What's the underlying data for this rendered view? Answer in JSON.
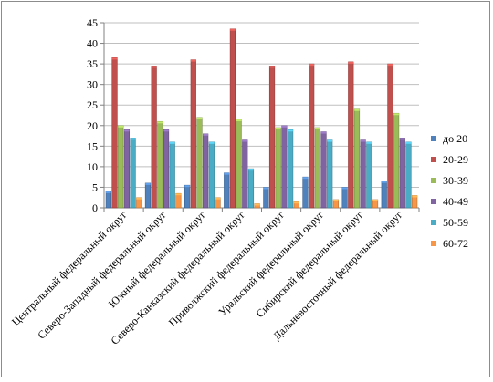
{
  "chart_data": {
    "type": "bar",
    "ylim": [
      0,
      45
    ],
    "yticks": [
      0,
      5,
      10,
      15,
      20,
      25,
      30,
      35,
      40,
      45
    ],
    "grid": true,
    "legend_position": "right",
    "categories": [
      "Центральный федеральный округ",
      "Северо-Западный федеральный округ",
      "Южный федеральный округ",
      "Северо-Кавказский федеральный округ",
      "Приволжский федеральный округ",
      "Уральский федеральный округ",
      "Сибирский федеральный округ",
      "Дальневосточный федеральный округ"
    ],
    "series": [
      {
        "name": "до 20",
        "color": "#4f81bd",
        "values": [
          4.0,
          6.0,
          5.5,
          8.5,
          5.0,
          7.5,
          5.0,
          6.5
        ]
      },
      {
        "name": "20-29",
        "color": "#c0504d",
        "values": [
          36.5,
          34.5,
          36.0,
          43.5,
          34.5,
          35.0,
          35.5,
          35.0
        ]
      },
      {
        "name": "30-39",
        "color": "#9bbb59",
        "values": [
          20.0,
          21.0,
          22.0,
          21.5,
          19.5,
          19.5,
          24.0,
          23.0
        ]
      },
      {
        "name": "40-49",
        "color": "#8064a2",
        "values": [
          19.0,
          19.0,
          18.0,
          16.5,
          20.0,
          18.5,
          16.5,
          17.0
        ]
      },
      {
        "name": "50-59",
        "color": "#4bacc6",
        "values": [
          17.0,
          16.0,
          16.0,
          9.5,
          19.0,
          16.5,
          16.0,
          16.0
        ]
      },
      {
        "name": "60-72",
        "color": "#f79646",
        "values": [
          2.5,
          3.5,
          2.5,
          1.0,
          1.5,
          2.0,
          2.0,
          3.0
        ]
      }
    ]
  }
}
